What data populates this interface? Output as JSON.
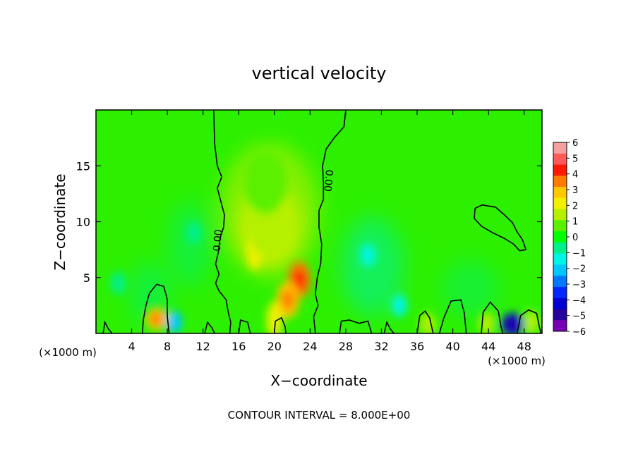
{
  "chart_data": {
    "type": "heatmap",
    "title": "vertical velocity",
    "xlabel": "X−coordinate",
    "ylabel": "Z−coordinate",
    "x_unit_left": "(×1000 m)",
    "x_unit_right": "(×1000 m)",
    "xlim": [
      0,
      50
    ],
    "ylim": [
      0,
      20
    ],
    "xticks": [
      4,
      8,
      12,
      16,
      20,
      24,
      28,
      32,
      36,
      40,
      44,
      48
    ],
    "yticks": [
      5,
      10,
      15
    ],
    "footer": "CONTOUR INTERVAL = 8.000E+00",
    "contour_labels": [
      "0.00",
      "0.00"
    ],
    "colorbar": {
      "labels": [
        "6",
        "5",
        "4",
        "3",
        "2",
        "1",
        "0",
        "−1",
        "−2",
        "−3",
        "−4",
        "−5",
        "−6"
      ],
      "colors": [
        "#f5a0a0",
        "#ff5a5a",
        "#ff1a00",
        "#ff7a00",
        "#ffc800",
        "#f0f000",
        "#b4f000",
        "#5af000",
        "#00ff00",
        "#00f08c",
        "#00f5e6",
        "#00c8ff",
        "#0078ff",
        "#0028ff",
        "#0000d2",
        "#2800a0",
        "#7800b4"
      ]
    },
    "background_color": "#2cf000",
    "features": [
      {
        "name": "updraft-core",
        "x": 22.8,
        "z": 4.8,
        "value": 3.6
      },
      {
        "name": "updraft-core",
        "x": 21.5,
        "z": 3.0,
        "value": 3.2
      },
      {
        "name": "updraft-core",
        "x": 17.8,
        "z": 7.3,
        "value": 2.2
      },
      {
        "name": "updraft-core",
        "x": 20.0,
        "z": 1.2,
        "value": 2.4
      },
      {
        "name": "updraft-plume",
        "x": 19.5,
        "z": 9.5,
        "value": 1.3
      },
      {
        "name": "updraft-plume",
        "x": 19.0,
        "z": 13.5,
        "value": 0.7
      },
      {
        "name": "surface-cell",
        "x": 6.8,
        "z": 1.3,
        "value": 3.2
      },
      {
        "name": "surface-cell",
        "x": 37.2,
        "z": 0.8,
        "value": 1.8
      },
      {
        "name": "surface-cell",
        "x": 43.8,
        "z": 0.9,
        "value": 1.5
      },
      {
        "name": "surface-cell",
        "x": 48.8,
        "z": 1.0,
        "value": 1.8
      },
      {
        "name": "downdraft",
        "x": 46.7,
        "z": 0.8,
        "value": -4.8
      },
      {
        "name": "downdraft",
        "x": 8.8,
        "z": 1.0,
        "value": -2.3
      },
      {
        "name": "downdraft",
        "x": 30.5,
        "z": 7.0,
        "value": -1.3
      },
      {
        "name": "downdraft",
        "x": 34.0,
        "z": 2.5,
        "value": -1.4
      },
      {
        "name": "downdraft",
        "x": 11.0,
        "z": 9.0,
        "value": -1.0
      },
      {
        "name": "downdraft",
        "x": 2.5,
        "z": 4.5,
        "value": -0.9
      }
    ]
  }
}
